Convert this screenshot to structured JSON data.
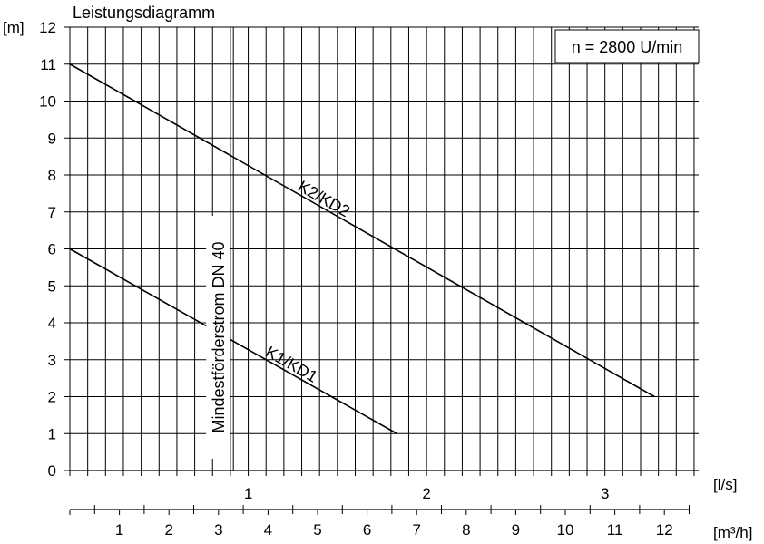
{
  "chart_data": {
    "type": "line",
    "title": "Leistungsdiagramm",
    "ylabel": "[m]",
    "ylim": [
      0,
      12
    ],
    "yticks": [
      0,
      1,
      2,
      3,
      4,
      5,
      6,
      7,
      8,
      9,
      10,
      11,
      12
    ],
    "x_axis_ls": {
      "label": "[l/s]",
      "ticks": [
        {
          "value": 1,
          "label": "1"
        },
        {
          "value": 2,
          "label": "2"
        },
        {
          "value": 3,
          "label": "3"
        }
      ]
    },
    "x_axis_m3h": {
      "label": "[m³/h]",
      "xlim": [
        0,
        12.5
      ],
      "ticks": [
        {
          "value": 1,
          "label": "1"
        },
        {
          "value": 2,
          "label": "2"
        },
        {
          "value": 3,
          "label": "3"
        },
        {
          "value": 4,
          "label": "4"
        },
        {
          "value": 5,
          "label": "5"
        },
        {
          "value": 6,
          "label": "6"
        },
        {
          "value": 7,
          "label": "7"
        },
        {
          "value": 8,
          "label": "8"
        },
        {
          "value": 9,
          "label": "9"
        },
        {
          "value": 10,
          "label": "10"
        },
        {
          "value": 11,
          "label": "11"
        },
        {
          "value": 12,
          "label": "12"
        }
      ]
    },
    "series": [
      {
        "name": "K2/KD2",
        "x_m3h": [
          0,
          11.8
        ],
        "y": [
          11,
          2
        ]
      },
      {
        "name": "K1/KD1",
        "x_m3h": [
          0,
          6.6
        ],
        "y": [
          6,
          1
        ]
      }
    ],
    "min_flow_label": "Mindestförderstrom DN 40",
    "min_flow_m3h": 3.3,
    "speed_note": "n = 2800 U/min",
    "grid": true
  }
}
